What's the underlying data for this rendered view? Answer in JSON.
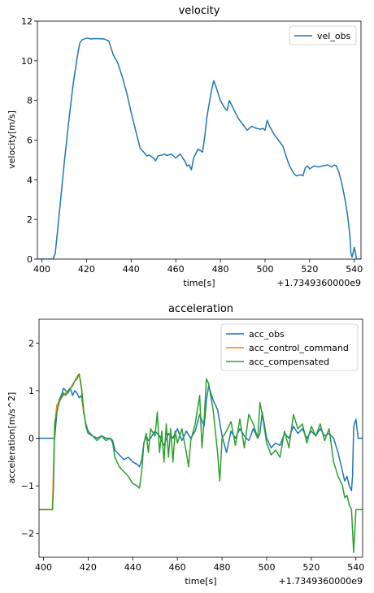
{
  "chart_data": [
    {
      "type": "line",
      "title": "velocity",
      "xlabel": "time[s]",
      "ylabel": "velocity[m/s]",
      "x_offset_label": "+1.7349360000e9",
      "xlim": [
        398,
        543
      ],
      "ylim": [
        0,
        12
      ],
      "xticks": [
        400,
        420,
        440,
        460,
        480,
        500,
        520,
        540
      ],
      "yticks": [
        0,
        2,
        4,
        6,
        8,
        10,
        12
      ],
      "grid": false,
      "legend": "top-right",
      "colors": {
        "vel_obs": "#1f77b4"
      },
      "series": [
        {
          "name": "vel_obs",
          "x": [
            398,
            405,
            406,
            408,
            410,
            412,
            414,
            416,
            417,
            418,
            419,
            420,
            422,
            424,
            428,
            430,
            432,
            434,
            436,
            438,
            440,
            442,
            444,
            446,
            447,
            448,
            450,
            451,
            452,
            454,
            455,
            456,
            458,
            460,
            462,
            464,
            465,
            466,
            467,
            468,
            470,
            472,
            473,
            474,
            476,
            477,
            478,
            480,
            481,
            482,
            483,
            484,
            486,
            488,
            490,
            492,
            494,
            496,
            498,
            499,
            500,
            501,
            502,
            504,
            506,
            508,
            510,
            511,
            512,
            513,
            514,
            516,
            517,
            518,
            519,
            520,
            522,
            524,
            526,
            528,
            530,
            531,
            532,
            533,
            534,
            535,
            536,
            537,
            538,
            538.5,
            539,
            540,
            541,
            543
          ],
          "y": [
            0,
            0,
            0.3,
            2.5,
            4.8,
            6.9,
            8.8,
            10.3,
            10.9,
            11.05,
            11.1,
            11.15,
            11.1,
            11.12,
            11.1,
            11.0,
            10.3,
            9.9,
            9.2,
            8.4,
            7.4,
            6.5,
            5.6,
            5.35,
            5.2,
            5.25,
            5.1,
            4.95,
            5.2,
            5.25,
            5.3,
            5.22,
            5.3,
            5.1,
            5.3,
            4.95,
            4.7,
            4.75,
            4.5,
            5.1,
            5.55,
            5.4,
            6.2,
            7.2,
            8.5,
            9.0,
            8.7,
            8.0,
            7.8,
            7.6,
            7.5,
            8.0,
            7.55,
            7.1,
            6.8,
            6.5,
            6.7,
            6.6,
            6.55,
            6.6,
            6.5,
            7.0,
            6.7,
            6.3,
            6.0,
            5.7,
            5.0,
            4.7,
            4.5,
            4.3,
            4.2,
            4.25,
            4.2,
            4.6,
            4.7,
            4.55,
            4.7,
            4.65,
            4.7,
            4.75,
            4.65,
            4.75,
            4.7,
            4.4,
            4.0,
            3.5,
            2.9,
            2.2,
            1.2,
            0.3,
            0.1,
            0.6,
            0,
            0
          ]
        }
      ]
    },
    {
      "type": "line",
      "title": "acceleration",
      "xlabel": "time[s]",
      "ylabel": "acceleration[m/s^2]",
      "x_offset_label": "+1.7349360000e9",
      "xlim": [
        398,
        543
      ],
      "ylim": [
        -2.5,
        2.5
      ],
      "xticks": [
        400,
        420,
        440,
        460,
        480,
        500,
        520,
        540
      ],
      "yticks": [
        -2,
        -1,
        0,
        1,
        2
      ],
      "grid": false,
      "legend": "top-right",
      "colors": {
        "acc_obs": "#1f77b4",
        "acc_control_command": "#ff7f0e",
        "acc_compensated": "#2ca02c"
      },
      "series": [
        {
          "name": "acc_obs",
          "x": [
            398,
            404,
            405,
            406,
            407,
            408,
            409,
            410,
            411,
            412,
            413,
            414,
            415,
            416,
            417,
            418,
            419,
            420,
            422,
            424,
            426,
            428,
            430,
            431,
            432,
            434,
            436,
            438,
            440,
            442,
            443,
            444,
            445,
            446,
            447,
            448,
            450,
            452,
            454,
            456,
            458,
            460,
            462,
            464,
            466,
            468,
            470,
            472,
            473,
            474,
            475,
            476,
            478,
            480,
            482,
            484,
            486,
            488,
            490,
            492,
            494,
            496,
            497,
            498,
            500,
            502,
            504,
            506,
            508,
            510,
            512,
            514,
            516,
            518,
            520,
            522,
            524,
            526,
            528,
            530,
            532,
            534,
            535,
            536,
            537,
            538,
            538.5,
            539,
            540,
            541,
            543
          ],
          "y": [
            0,
            0,
            0,
            0.55,
            0.8,
            0.9,
            1.05,
            1.0,
            0.95,
            1.05,
            0.9,
            1.0,
            0.95,
            0.85,
            0.9,
            0.55,
            0.3,
            0.15,
            0.05,
            0.0,
            0.05,
            0.0,
            0.0,
            -0.05,
            -0.25,
            -0.35,
            -0.45,
            -0.4,
            -0.5,
            -0.55,
            -0.6,
            -0.45,
            -0.1,
            0.05,
            -0.05,
            0.0,
            0.15,
            0.05,
            -0.15,
            0.1,
            0.0,
            0.2,
            -0.05,
            0.15,
            0.0,
            0.15,
            0.5,
            0.25,
            0.8,
            1.1,
            0.95,
            0.8,
            0.6,
            0.05,
            -0.3,
            0.15,
            0.0,
            0.2,
            0.05,
            -0.05,
            0.2,
            0.0,
            0.1,
            0.55,
            0.0,
            -0.2,
            -0.1,
            -0.15,
            0.1,
            0.0,
            0.25,
            0.1,
            0.2,
            0.0,
            0.15,
            0.05,
            0.2,
            0.05,
            0.1,
            0.0,
            -0.3,
            -0.7,
            -0.9,
            -0.8,
            -1.0,
            -1.1,
            -0.8,
            0.25,
            0.4,
            0,
            0
          ]
        },
        {
          "name": "acc_control_command",
          "x": [
            398,
            404,
            405,
            406,
            408,
            410,
            412,
            414,
            415,
            416,
            417,
            418
          ],
          "y": [
            -1.5,
            -1.5,
            0.3,
            0.7,
            0.85,
            0.95,
            1.05,
            1.2,
            1.3,
            1.35,
            1.1,
            0.5
          ]
        },
        {
          "name": "acc_compensated",
          "x": [
            398,
            404,
            404.5,
            405,
            406,
            407,
            408,
            409,
            410,
            411,
            412,
            413,
            414,
            415,
            416,
            417,
            418,
            419,
            420,
            422,
            424,
            426,
            428,
            430,
            431,
            432,
            434,
            436,
            438,
            440,
            442,
            443,
            444,
            445,
            446,
            447,
            448,
            450,
            451,
            452,
            453,
            454,
            455,
            456,
            457,
            458,
            459,
            460,
            462,
            464,
            465,
            466,
            468,
            470,
            471,
            472,
            473,
            474,
            476,
            478,
            479,
            480,
            482,
            484,
            486,
            488,
            490,
            492,
            494,
            496,
            497,
            498,
            500,
            502,
            504,
            506,
            508,
            510,
            512,
            514,
            516,
            518,
            520,
            522,
            524,
            526,
            528,
            530,
            532,
            534,
            535,
            536,
            537,
            538,
            539,
            540,
            541,
            543
          ],
          "y": [
            -1.5,
            -1.5,
            -1.0,
            0.3,
            0.55,
            0.75,
            0.85,
            0.95,
            0.9,
            1.0,
            1.05,
            1.1,
            1.2,
            1.25,
            1.35,
            1.05,
            0.6,
            0.25,
            0.1,
            0.05,
            -0.05,
            0.05,
            -0.05,
            0.0,
            -0.1,
            -0.4,
            -0.6,
            -0.7,
            -0.8,
            -0.95,
            -1.0,
            -1.05,
            -0.7,
            -0.1,
            0.1,
            -0.3,
            0.2,
            0.05,
            0.55,
            -0.3,
            0.15,
            -0.5,
            0.3,
            -0.4,
            0.2,
            -0.5,
            0.15,
            -0.1,
            0.2,
            -0.3,
            -0.6,
            -0.05,
            0.3,
            0.9,
            -0.2,
            0.4,
            1.25,
            1.15,
            0.6,
            -0.3,
            -0.9,
            0.0,
            0.15,
            0.35,
            -0.15,
            0.4,
            -0.2,
            0.5,
            0.3,
            0.0,
            0.75,
            0.5,
            -0.1,
            -0.35,
            -0.25,
            -0.4,
            0.15,
            -0.2,
            0.5,
            0.2,
            0.3,
            -0.1,
            0.25,
            0.05,
            0.3,
            -0.05,
            0.2,
            -0.5,
            -0.8,
            -1.0,
            -1.25,
            -1.2,
            -1.4,
            -1.5,
            -2.4,
            -1.5,
            -1.5,
            -1.5
          ]
        }
      ]
    }
  ]
}
